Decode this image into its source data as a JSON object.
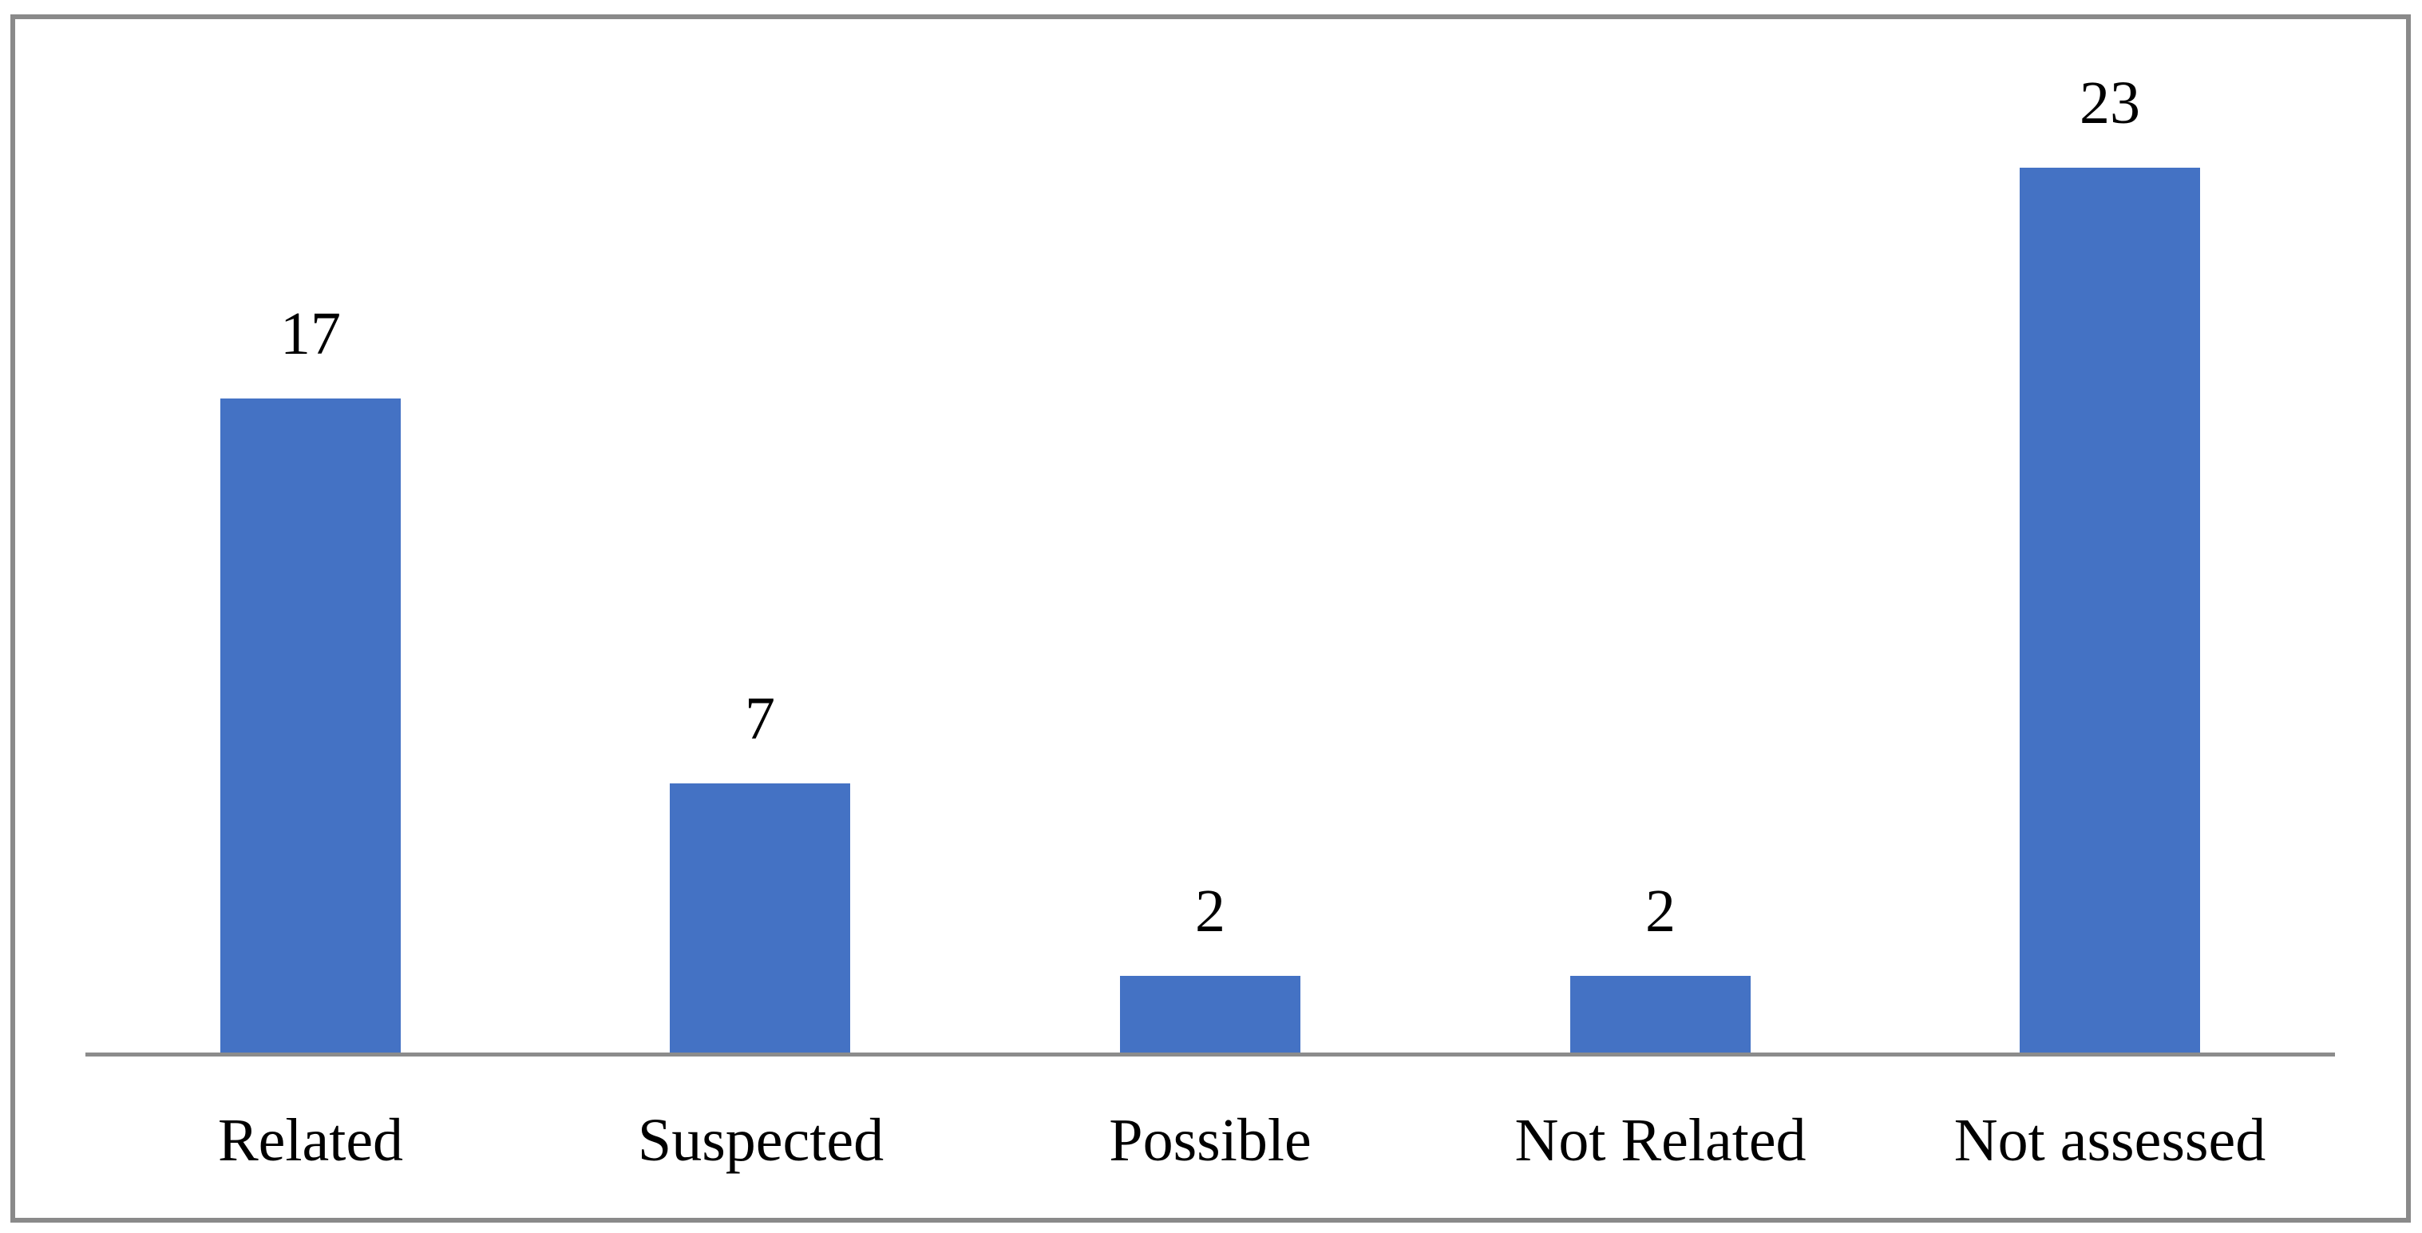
{
  "chart_data": {
    "type": "bar",
    "categories": [
      "Related",
      "Suspected",
      "Possible",
      "Not Related",
      "Not assessed"
    ],
    "values": [
      17,
      7,
      2,
      2,
      23
    ],
    "data_labels": [
      "17",
      "7",
      "2",
      "2",
      "23"
    ],
    "title": "",
    "xlabel": "",
    "ylabel": "",
    "ylim": [
      0,
      25
    ],
    "grid": false,
    "legend": false,
    "legend_position": "none",
    "orientation": "vertical",
    "colors": {
      "bar_fill": "#4472C4",
      "axis_line": "#8c8c8c",
      "figure_border": "#8a8a8a",
      "label_text": "#000000",
      "background": "#ffffff"
    }
  }
}
